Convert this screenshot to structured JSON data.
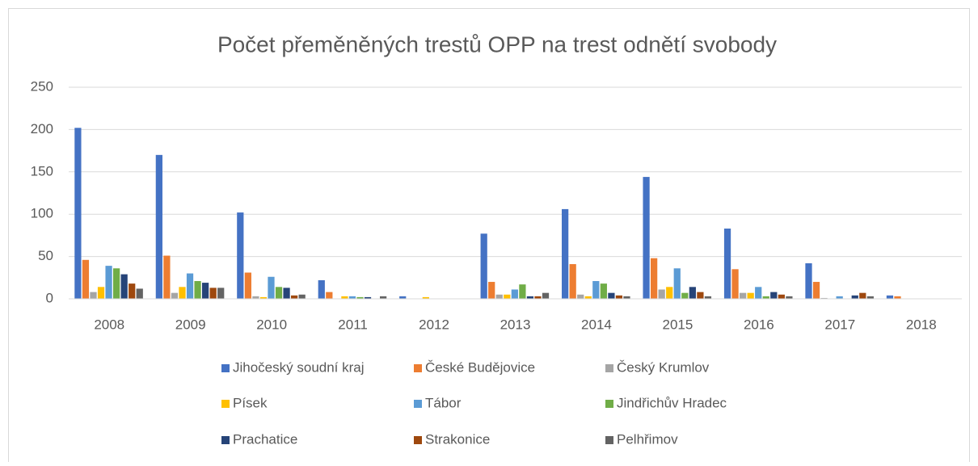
{
  "chart_data": {
    "type": "bar",
    "title": "Počet přeměněných trestů OPP na trest odnětí svobody",
    "categories": [
      "2008",
      "2009",
      "2010",
      "2011",
      "2012",
      "2013",
      "2014",
      "2015",
      "2016",
      "2017",
      "2018"
    ],
    "series": [
      {
        "name": "Jihočeský soudní kraj",
        "color": "#4472c4",
        "values": [
          202,
          170,
          102,
          22,
          3,
          77,
          106,
          144,
          83,
          42,
          4
        ]
      },
      {
        "name": "České Budějovice",
        "color": "#ed7d31",
        "values": [
          46,
          51,
          31,
          8,
          0,
          20,
          41,
          48,
          35,
          20,
          3
        ]
      },
      {
        "name": "Český Krumlov",
        "color": "#a5a5a5",
        "values": [
          8,
          7,
          3,
          0,
          0,
          5,
          5,
          11,
          7,
          1,
          0
        ]
      },
      {
        "name": "Písek",
        "color": "#ffc000",
        "values": [
          14,
          14,
          2,
          3,
          2,
          5,
          3,
          14,
          7,
          0,
          0
        ]
      },
      {
        "name": "Tábor",
        "color": "#5b9bd5",
        "values": [
          39,
          30,
          26,
          3,
          0,
          11,
          21,
          36,
          14,
          3,
          0
        ]
      },
      {
        "name": "Jindřichův Hradec",
        "color": "#70ad47",
        "values": [
          36,
          21,
          14,
          2,
          0,
          17,
          18,
          7,
          3,
          0,
          0
        ]
      },
      {
        "name": "Prachatice",
        "color": "#264478",
        "values": [
          29,
          19,
          13,
          2,
          0,
          3,
          7,
          14,
          8,
          4,
          0
        ]
      },
      {
        "name": "Strakonice",
        "color": "#9e480e",
        "values": [
          18,
          13,
          4,
          0,
          0,
          3,
          4,
          8,
          5,
          7,
          0
        ]
      },
      {
        "name": "Pelhřimov",
        "color": "#636363",
        "values": [
          12,
          13,
          5,
          3,
          0,
          7,
          3,
          3,
          3,
          3,
          0
        ]
      }
    ],
    "ylim": [
      0,
      250
    ],
    "yticks": [
      0,
      50,
      100,
      150,
      200,
      250
    ],
    "grid": true,
    "legend": "bottom"
  }
}
